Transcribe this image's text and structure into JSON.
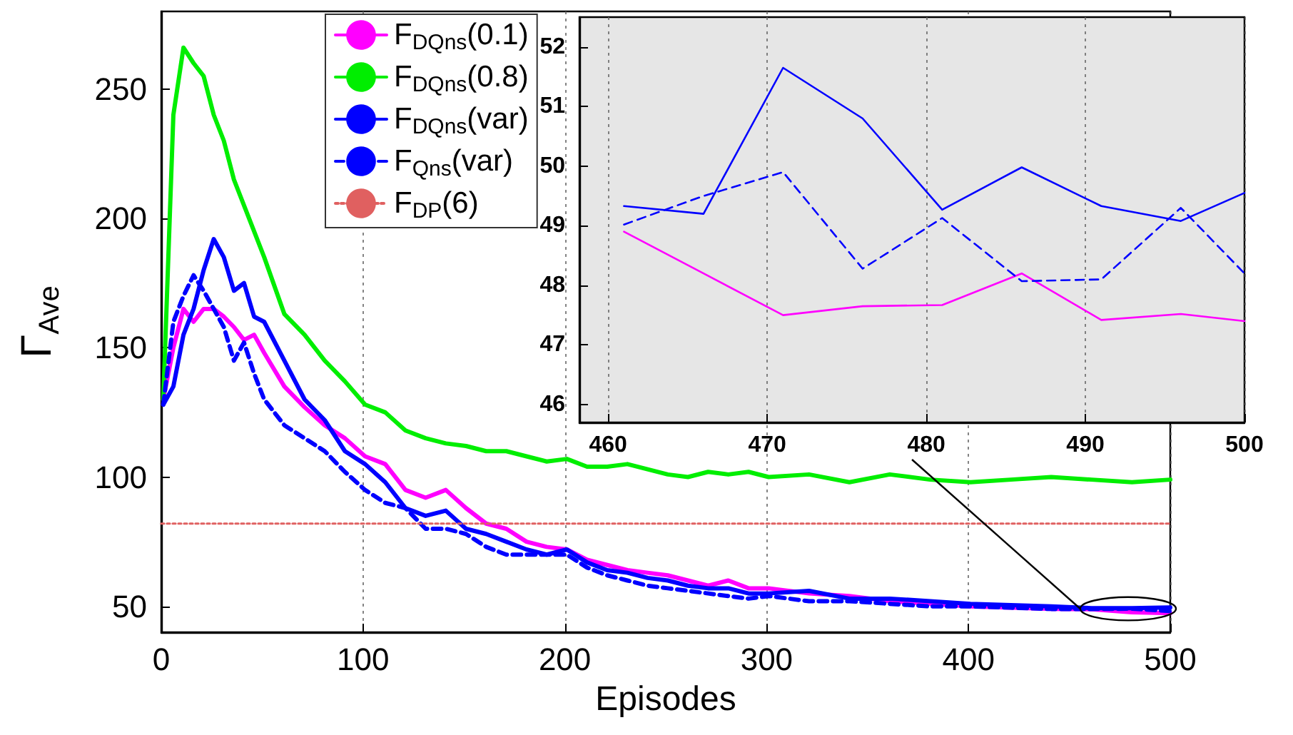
{
  "chart_data": [
    {
      "type": "line",
      "xlabel": "Episodes",
      "ylabel": "Γ$_{Ave}$",
      "xlim": [
        0,
        500
      ],
      "ylim": [
        40,
        280
      ],
      "xticks": [
        0,
        100,
        200,
        300,
        400,
        500
      ],
      "yticks": [
        50,
        100,
        150,
        200,
        250
      ],
      "grid": "x",
      "legend": "top left",
      "marker": "none",
      "x": [
        1,
        6,
        11,
        16,
        21,
        26,
        31,
        36,
        41,
        46,
        51,
        61,
        71,
        81,
        91,
        101,
        111,
        121,
        131,
        141,
        151,
        161,
        171,
        181,
        191,
        201,
        211,
        221,
        231,
        241,
        251,
        261,
        271,
        281,
        291,
        301,
        321,
        341,
        361,
        381,
        401,
        421,
        441,
        461,
        481,
        500
      ],
      "series": [
        {
          "name": "F$_{DQns}$(0.1)",
          "color": "#ff00ff",
          "line_style": "solid",
          "values": [
            130,
            150,
            165,
            160,
            165,
            165,
            162,
            158,
            153,
            155,
            148,
            135,
            127,
            120,
            115,
            108,
            105,
            95,
            92,
            95,
            88,
            82,
            80,
            75,
            73,
            72,
            68,
            66,
            64,
            63,
            62,
            60,
            58,
            60,
            57,
            57,
            55,
            54,
            52,
            51,
            50,
            49.5,
            49,
            48.9,
            47.7,
            47.4
          ]
        },
        {
          "name": "F$_{DQns}$(0.8)",
          "color": "#00ee00",
          "line_style": "solid",
          "values": [
            130,
            240,
            266,
            260,
            255,
            240,
            230,
            215,
            205,
            195,
            185,
            163,
            155,
            145,
            137,
            128,
            125,
            118,
            115,
            113,
            112,
            110,
            110,
            108,
            106,
            107,
            104,
            104,
            105,
            103,
            101,
            100,
            102,
            101,
            102,
            100,
            101,
            98,
            101,
            99,
            98,
            99,
            100,
            99,
            98,
            99
          ]
        },
        {
          "name": "F$_{DQns}$(var)",
          "color": "#0000ff",
          "line_style": "solid",
          "values": [
            128,
            135,
            155,
            165,
            180,
            192,
            185,
            172,
            175,
            162,
            160,
            145,
            130,
            122,
            110,
            105,
            98,
            88,
            85,
            87,
            80,
            78,
            75,
            72,
            70,
            72,
            67,
            64,
            63,
            61,
            60,
            58,
            57,
            57,
            55,
            55,
            56,
            53,
            53,
            52,
            51,
            50.5,
            50,
            49.3,
            49.3,
            49.6
          ]
        },
        {
          "name": "F$_{Qns}$(var)",
          "color": "#0000ff",
          "line_style": "dashed",
          "values": [
            128,
            160,
            170,
            178,
            172,
            165,
            158,
            145,
            152,
            140,
            130,
            120,
            115,
            110,
            102,
            95,
            90,
            88,
            80,
            80,
            78,
            73,
            70,
            70,
            70,
            70,
            65,
            62,
            60,
            58,
            57,
            56,
            55,
            54,
            53,
            54,
            52,
            52,
            51,
            50,
            50,
            49.5,
            49,
            49,
            49.1,
            48.2
          ]
        },
        {
          "name": "F$_{DP}$(6)",
          "color": "#e06060",
          "line_style": "dotted",
          "x": [
            0,
            500
          ],
          "values": [
            82,
            82
          ]
        }
      ]
    },
    {
      "type": "line",
      "xlim": [
        458.2,
        500
      ],
      "ylim": [
        45.7,
        52.5
      ],
      "xticks": [
        460,
        470,
        480,
        490,
        500
      ],
      "yticks": [
        46,
        47,
        48,
        49,
        50,
        51,
        52
      ],
      "grid": "x",
      "marker": "none",
      "x": [
        461,
        466,
        471,
        476,
        481,
        486,
        491,
        496,
        500
      ],
      "series": [
        {
          "color": "#ff00ff",
          "line_style": "solid",
          "values": [
            48.9,
            48.2,
            47.5,
            47.65,
            47.67,
            48.2,
            47.42,
            47.52,
            47.4
          ]
        },
        {
          "color": "#0000ff",
          "line_style": "solid",
          "values": [
            49.33,
            49.2,
            51.65,
            50.8,
            49.27,
            49.98,
            49.33,
            49.08,
            49.55
          ]
        },
        {
          "color": "#0000ff",
          "line_style": "dashed",
          "values": [
            49.02,
            49.5,
            49.9,
            48.28,
            49.13,
            48.07,
            48.1,
            49.3,
            48.2
          ]
        }
      ]
    }
  ]
}
